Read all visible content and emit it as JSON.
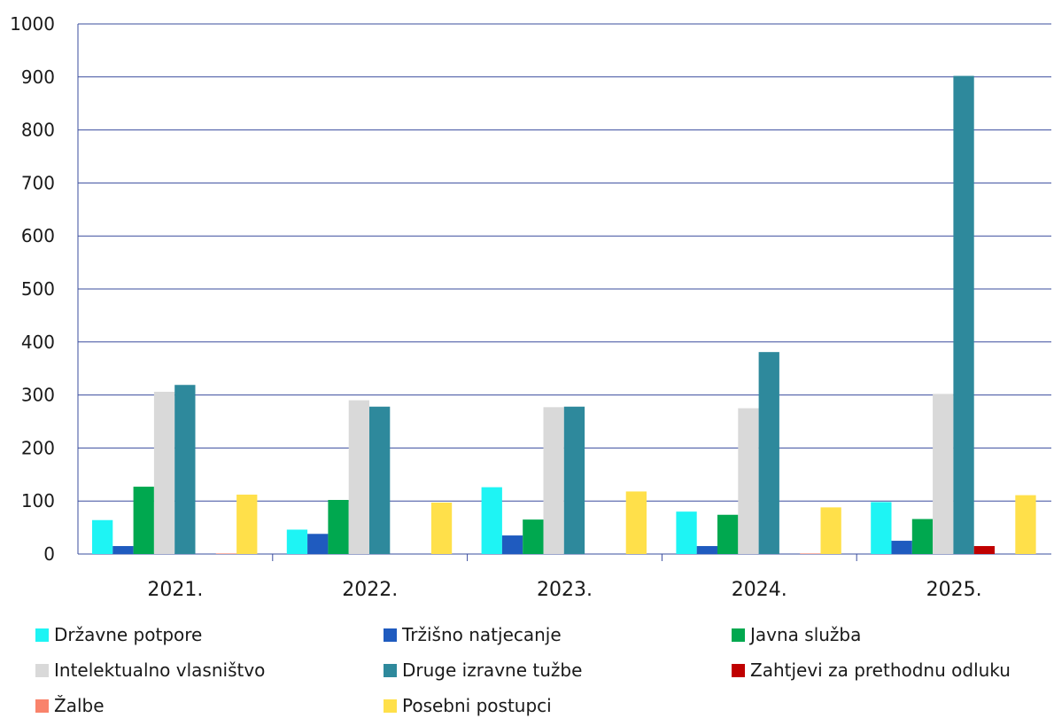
{
  "chart_data": {
    "type": "bar",
    "categories": [
      "2021.",
      "2022.",
      "2023.",
      "2024.",
      "2025."
    ],
    "ylim": [
      0,
      1000
    ],
    "yticks": [
      0,
      100,
      200,
      300,
      400,
      500,
      600,
      700,
      800,
      900,
      1000
    ],
    "grid": true,
    "legend_position": "bottom",
    "series": [
      {
        "name": "Državne potpore",
        "color": "#1EF4F4",
        "values": [
          64,
          46,
          126,
          80,
          98
        ]
      },
      {
        "name": "Tržišno natjecanje",
        "color": "#1F5BBF",
        "values": [
          15,
          38,
          35,
          15,
          25
        ]
      },
      {
        "name": "Javna služba",
        "color": "#00A84F",
        "values": [
          127,
          102,
          65,
          74,
          66
        ]
      },
      {
        "name": "Intelektualno vlasništvo",
        "color": "#D9D9D9",
        "values": [
          306,
          290,
          277,
          275,
          302
        ]
      },
      {
        "name": "Druge izravne tužbe",
        "color": "#2E899C",
        "values": [
          319,
          278,
          278,
          381,
          902
        ]
      },
      {
        "name": "Zahtjevi za prethodnu odluku",
        "color": "#C00000",
        "values": [
          0,
          0,
          0,
          0,
          15
        ]
      },
      {
        "name": "Žalbe",
        "color": "#F9836B",
        "values": [
          1,
          0,
          0,
          1,
          0
        ]
      },
      {
        "name": "Posebni postupci",
        "color": "#FFE04A",
        "values": [
          112,
          97,
          118,
          88,
          111
        ]
      }
    ]
  }
}
